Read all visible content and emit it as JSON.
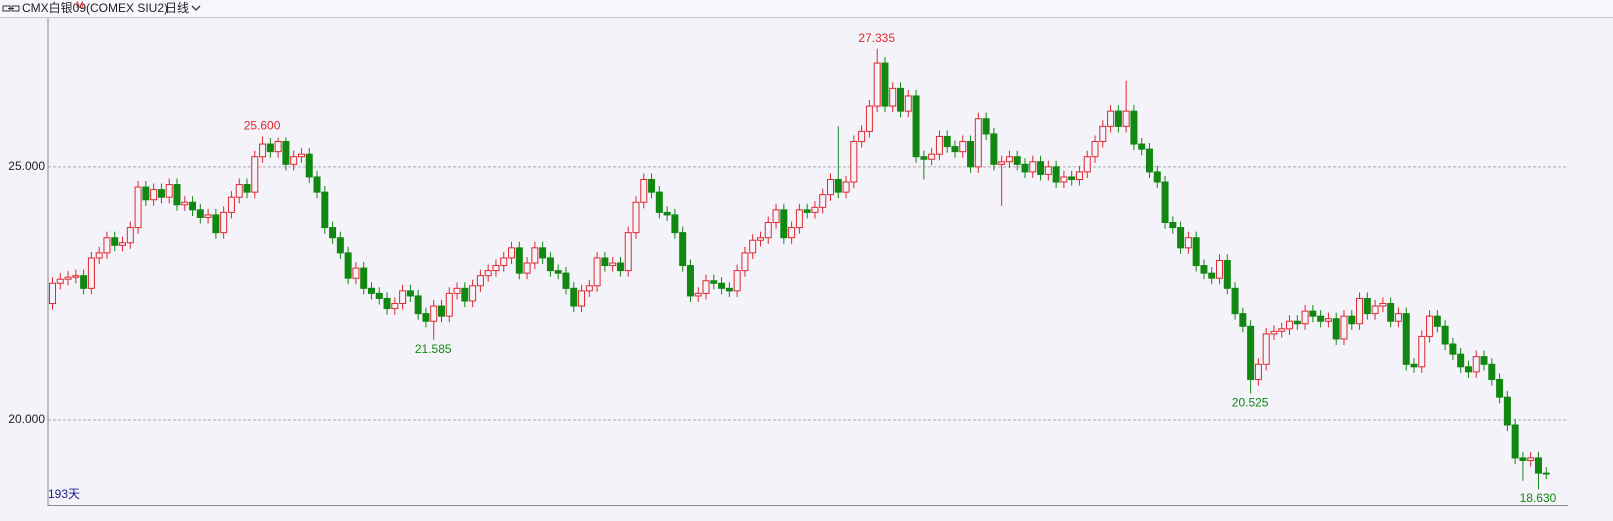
{
  "header": {
    "symbol": "CMX白银09",
    "badge": "M",
    "code": "(COMEX SIU2)",
    "period": "日线"
  },
  "chart_data": {
    "type": "candlestick",
    "footer": "193天",
    "up_color": "#e0282e",
    "down_color": "#118811",
    "grid": true,
    "ylim": [
      18.32,
      27.94
    ],
    "yticks": [
      {
        "value": 20,
        "label": "20.000"
      },
      {
        "value": 25,
        "label": "25.000"
      }
    ],
    "open": [
      22.3,
      22.7,
      22.78,
      22.82,
      22.85,
      22.6,
      23.2,
      23.3,
      23.6,
      23.45,
      23.5,
      23.8,
      24.6,
      24.35,
      24.55,
      24.4,
      24.65,
      24.25,
      24.3,
      24.15,
      24.0,
      24.05,
      23.7,
      24.1,
      24.4,
      24.65,
      24.5,
      25.2,
      25.45,
      25.3,
      25.5,
      25.05,
      25.2,
      25.25,
      24.8,
      24.5,
      23.8,
      23.6,
      23.3,
      22.8,
      23.0,
      22.6,
      22.5,
      22.4,
      22.2,
      22.3,
      22.55,
      22.45,
      22.1,
      21.95,
      22.25,
      22.05,
      22.5,
      22.6,
      22.35,
      22.65,
      22.85,
      22.95,
      23.05,
      23.2,
      23.4,
      22.9,
      23.1,
      23.4,
      23.2,
      22.95,
      22.9,
      22.6,
      22.25,
      22.55,
      22.65,
      23.2,
      23.05,
      23.1,
      22.95,
      23.7,
      24.3,
      24.75,
      24.5,
      24.1,
      24.05,
      23.7,
      23.05,
      22.45,
      22.5,
      22.75,
      22.7,
      22.6,
      22.55,
      22.95,
      23.3,
      23.55,
      23.6,
      23.9,
      24.15,
      23.6,
      23.8,
      24.15,
      24.1,
      24.2,
      24.45,
      24.75,
      24.5,
      24.7,
      25.5,
      25.7,
      26.2,
      27.05,
      26.2,
      26.55,
      26.1,
      26.4,
      25.2,
      25.15,
      25.25,
      25.6,
      25.4,
      25.3,
      25.5,
      25.0,
      25.95,
      25.65,
      25.05,
      25.1,
      25.2,
      25.05,
      24.9,
      25.1,
      24.85,
      25.0,
      24.7,
      24.8,
      24.75,
      24.9,
      25.2,
      25.5,
      25.8,
      26.1,
      25.8,
      26.1,
      25.45,
      25.35,
      24.9,
      24.7,
      23.9,
      23.8,
      23.4,
      23.6,
      23.05,
      22.9,
      22.8,
      23.15,
      22.6,
      22.1,
      21.85,
      20.8,
      21.1,
      21.7,
      21.75,
      21.8,
      21.95,
      21.9,
      22.15,
      22.05,
      21.95,
      22.0,
      21.6,
      22.05,
      21.9,
      22.4,
      22.1,
      22.25,
      22.3,
      21.95,
      22.1,
      21.1,
      21.05,
      21.65,
      22.05,
      21.85,
      21.5,
      21.3,
      21.05,
      20.95,
      21.25,
      21.1,
      20.8,
      20.45,
      19.9,
      19.25,
      19.2,
      19.25,
      18.95
    ],
    "high": [
      22.82,
      22.9,
      22.94,
      22.97,
      22.97,
      23.32,
      23.42,
      23.72,
      23.72,
      23.62,
      23.92,
      24.72,
      24.72,
      24.67,
      24.67,
      24.77,
      24.77,
      24.42,
      24.42,
      24.27,
      24.17,
      24.17,
      24.22,
      24.52,
      24.77,
      24.77,
      25.32,
      25.6,
      25.57,
      25.58,
      25.58,
      25.32,
      25.37,
      25.37,
      24.92,
      24.62,
      23.92,
      23.72,
      23.42,
      23.12,
      23.12,
      22.72,
      22.62,
      22.52,
      22.42,
      22.67,
      22.67,
      22.57,
      22.22,
      22.37,
      22.37,
      22.62,
      22.72,
      22.72,
      22.77,
      22.97,
      23.07,
      23.17,
      23.32,
      23.52,
      23.52,
      23.22,
      23.52,
      23.52,
      23.32,
      23.07,
      23.02,
      22.72,
      22.67,
      22.77,
      23.32,
      23.32,
      23.22,
      23.22,
      23.82,
      24.42,
      24.87,
      24.87,
      24.62,
      24.22,
      24.17,
      23.82,
      23.17,
      22.62,
      22.87,
      22.87,
      22.82,
      22.72,
      23.07,
      23.42,
      23.67,
      23.72,
      24.02,
      24.27,
      24.27,
      23.92,
      24.27,
      24.27,
      24.32,
      24.57,
      24.87,
      25.8,
      24.82,
      25.62,
      25.82,
      26.32,
      27.335,
      27.17,
      26.67,
      26.67,
      26.52,
      26.52,
      25.32,
      25.37,
      25.72,
      25.72,
      25.52,
      25.62,
      25.62,
      26.07,
      26.07,
      25.77,
      25.22,
      25.32,
      25.32,
      25.17,
      25.22,
      25.22,
      25.12,
      25.12,
      24.92,
      24.92,
      25.02,
      25.32,
      25.62,
      25.92,
      26.22,
      26.22,
      26.7,
      26.22,
      25.57,
      25.47,
      25.02,
      24.82,
      24.02,
      23.92,
      23.72,
      23.72,
      23.17,
      23.02,
      23.27,
      23.27,
      22.72,
      22.22,
      21.97,
      21.22,
      21.82,
      21.87,
      21.92,
      22.07,
      22.07,
      22.27,
      22.27,
      22.17,
      22.12,
      22.12,
      22.17,
      22.17,
      22.52,
      22.52,
      22.37,
      22.42,
      22.42,
      22.22,
      22.22,
      21.22,
      21.77,
      22.17,
      22.17,
      21.97,
      21.62,
      21.42,
      21.17,
      21.37,
      21.37,
      21.22,
      20.92,
      20.57,
      20.02,
      19.37,
      19.37,
      19.37,
      19.07
    ],
    "low": [
      22.18,
      22.58,
      22.66,
      22.7,
      22.48,
      22.48,
      23.08,
      23.18,
      23.33,
      23.33,
      23.38,
      23.68,
      24.23,
      24.23,
      24.28,
      24.28,
      24.13,
      24.13,
      24.03,
      23.88,
      23.88,
      23.58,
      23.58,
      23.98,
      24.28,
      24.38,
      24.38,
      25.08,
      25.18,
      25.18,
      24.93,
      24.93,
      25.08,
      24.68,
      24.38,
      23.68,
      23.48,
      23.18,
      22.68,
      22.68,
      22.48,
      22.38,
      22.28,
      22.08,
      22.08,
      22.18,
      22.33,
      21.98,
      21.83,
      21.585,
      21.93,
      21.93,
      22.38,
      22.23,
      22.23,
      22.53,
      22.73,
      22.83,
      22.93,
      23.08,
      22.78,
      22.78,
      22.98,
      23.08,
      22.83,
      22.78,
      22.48,
      22.13,
      22.13,
      22.43,
      22.53,
      22.93,
      22.93,
      22.83,
      22.83,
      23.58,
      24.18,
      24.38,
      23.98,
      23.93,
      23.58,
      22.93,
      22.33,
      22.33,
      22.38,
      22.58,
      22.48,
      22.43,
      22.43,
      22.83,
      23.18,
      23.43,
      23.48,
      23.78,
      23.48,
      23.48,
      23.68,
      23.98,
      23.98,
      24.08,
      24.33,
      24.38,
      24.38,
      24.58,
      25.38,
      25.58,
      26.08,
      26.08,
      26.08,
      25.98,
      25.98,
      25.08,
      24.75,
      25.03,
      25.13,
      25.28,
      25.18,
      25.18,
      24.88,
      24.88,
      25.53,
      24.93,
      24.23,
      24.98,
      24.93,
      24.78,
      24.78,
      24.73,
      24.73,
      24.58,
      24.58,
      24.63,
      24.63,
      24.78,
      25.08,
      25.38,
      25.68,
      25.68,
      25.68,
      25.33,
      25.23,
      24.78,
      24.58,
      23.78,
      23.68,
      23.28,
      23.28,
      22.93,
      22.78,
      22.68,
      22.68,
      22.48,
      21.98,
      21.73,
      20.525,
      20.68,
      20.98,
      21.58,
      21.63,
      21.68,
      21.78,
      21.78,
      21.93,
      21.83,
      21.83,
      21.48,
      21.48,
      21.78,
      21.78,
      21.98,
      21.98,
      22.13,
      21.83,
      21.83,
      20.98,
      20.93,
      20.93,
      21.53,
      21.73,
      21.38,
      21.18,
      20.93,
      20.83,
      20.83,
      20.98,
      20.68,
      20.33,
      19.78,
      19.13,
      18.8,
      19.08,
      18.63,
      18.83
    ],
    "close": [
      22.7,
      22.78,
      22.82,
      22.85,
      22.6,
      23.2,
      23.3,
      23.6,
      23.45,
      23.5,
      23.8,
      24.6,
      24.35,
      24.55,
      24.4,
      24.65,
      24.25,
      24.3,
      24.15,
      24.0,
      24.05,
      23.7,
      24.1,
      24.4,
      24.65,
      24.5,
      25.2,
      25.45,
      25.3,
      25.5,
      25.05,
      25.2,
      25.25,
      24.8,
      24.5,
      23.8,
      23.6,
      23.3,
      22.8,
      23.0,
      22.6,
      22.5,
      22.4,
      22.2,
      22.3,
      22.55,
      22.45,
      22.1,
      21.95,
      22.25,
      22.05,
      22.5,
      22.6,
      22.35,
      22.65,
      22.85,
      22.95,
      23.05,
      23.2,
      23.4,
      22.9,
      23.1,
      23.4,
      23.2,
      22.95,
      22.9,
      22.6,
      22.25,
      22.55,
      22.65,
      23.2,
      23.05,
      23.1,
      22.95,
      23.7,
      24.3,
      24.75,
      24.5,
      24.1,
      24.05,
      23.7,
      23.05,
      22.45,
      22.5,
      22.75,
      22.7,
      22.6,
      22.55,
      22.95,
      23.3,
      23.55,
      23.6,
      23.9,
      24.15,
      23.6,
      23.8,
      24.15,
      24.1,
      24.2,
      24.45,
      24.75,
      24.5,
      24.7,
      25.5,
      25.7,
      26.2,
      27.05,
      26.2,
      26.55,
      26.1,
      26.4,
      25.2,
      25.15,
      25.25,
      25.6,
      25.4,
      25.3,
      25.5,
      25.0,
      25.95,
      25.65,
      25.05,
      25.1,
      25.2,
      25.05,
      24.9,
      25.1,
      24.85,
      25.0,
      24.7,
      24.8,
      24.75,
      24.9,
      25.2,
      25.5,
      25.8,
      26.1,
      25.8,
      26.1,
      25.45,
      25.35,
      24.9,
      24.7,
      23.9,
      23.8,
      23.4,
      23.6,
      23.05,
      22.9,
      22.8,
      23.15,
      22.6,
      22.1,
      21.85,
      20.8,
      21.1,
      21.7,
      21.75,
      21.8,
      21.95,
      21.9,
      22.15,
      22.05,
      21.95,
      22.0,
      21.6,
      22.05,
      21.9,
      22.4,
      22.1,
      22.25,
      22.3,
      21.95,
      22.1,
      21.1,
      21.05,
      21.65,
      22.05,
      21.85,
      21.5,
      21.3,
      21.05,
      20.95,
      21.25,
      21.1,
      20.8,
      20.45,
      19.9,
      19.25,
      19.2,
      19.25,
      18.95,
      18.95
    ],
    "max_labels": [
      {
        "value": 25.6,
        "label": "25.600"
      },
      {
        "value": 27.335,
        "label": "27.335"
      }
    ],
    "min_labels": [
      {
        "value": 21.585,
        "label": "21.585"
      },
      {
        "value": 20.525,
        "label": "20.525"
      },
      {
        "value": 18.63,
        "label": "18.630"
      }
    ]
  }
}
